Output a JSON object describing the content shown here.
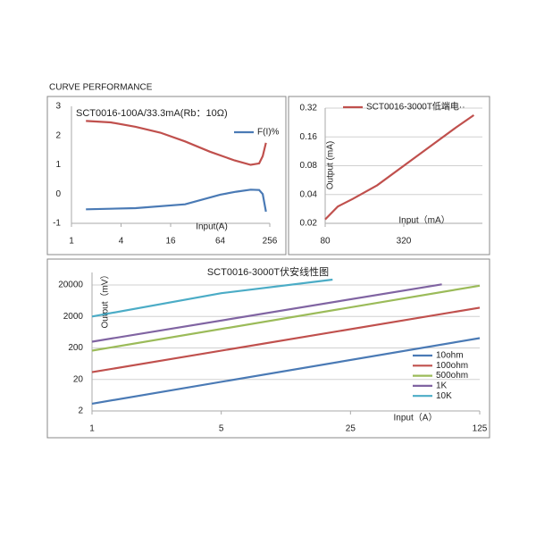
{
  "page_title": "CURVE PERFORMANCE",
  "chart_data": [
    {
      "type": "line",
      "title": "SCT0016-100A/33.3mA(Rb：10Ω)",
      "x_label": "Input(A)",
      "log_x": true,
      "legend": "upper right",
      "xlim": [
        1,
        256
      ],
      "xticks": [
        1,
        4,
        16,
        64,
        256
      ],
      "ylim": [
        -1,
        3
      ],
      "yticks": [
        3,
        2,
        1,
        0,
        -1
      ],
      "grid": false,
      "series": [
        {
          "color": "#c0504d",
          "x": [
            1.5,
            3,
            6,
            12,
            24,
            48,
            96,
            150,
            190,
            210,
            230
          ],
          "values": [
            2.5,
            2.45,
            2.3,
            2.1,
            1.8,
            1.45,
            1.15,
            1.0,
            1.05,
            1.3,
            1.75
          ]
        },
        {
          "name": "F(I)%",
          "color": "#4a7ab5",
          "x": [
            1.5,
            6,
            24,
            64,
            100,
            150,
            190,
            210,
            230
          ],
          "values": [
            -0.52,
            -0.48,
            -0.35,
            -0.02,
            0.08,
            0.15,
            0.14,
            0,
            -0.6
          ]
        }
      ]
    },
    {
      "type": "line",
      "x_label": "Input（mA）",
      "y_label": "Output (mA)",
      "log_x": true,
      "log_y": true,
      "legend": "top",
      "xlim": [
        80,
        1280
      ],
      "xticks": [
        80,
        320
      ],
      "ylim": [
        0.02,
        0.32
      ],
      "yticks": [
        0.32,
        0.16,
        0.08,
        0.04,
        0.02
      ],
      "grid": true,
      "series": [
        {
          "name": "SCT0016-3000T低端电··",
          "color": "#c0504d",
          "x": [
            80,
            100,
            130,
            200,
            400,
            800,
            1100
          ],
          "values": [
            0.022,
            0.03,
            0.036,
            0.05,
            0.1,
            0.2,
            0.27
          ]
        }
      ]
    },
    {
      "type": "line",
      "title": "SCT0016-3000T伏安线性图",
      "x_label": "Input（A）",
      "y_label": "Output（mV）",
      "log_x": true,
      "log_y": true,
      "legend": "lower right",
      "xlim": [
        1,
        125
      ],
      "xticks": [
        1,
        5,
        25,
        125
      ],
      "ylim": [
        2,
        50000
      ],
      "yticks": [
        20000,
        2000,
        200,
        20,
        2
      ],
      "grid": true,
      "series": [
        {
          "name": "10ohm",
          "color": "#4a7ab5",
          "x": [
            1,
            125
          ],
          "values": [
            3.4,
            410
          ]
        },
        {
          "name": "100ohm",
          "color": "#c0504d",
          "x": [
            1,
            125
          ],
          "values": [
            34,
            3800
          ]
        },
        {
          "name": "500ohm",
          "color": "#9bbb59",
          "x": [
            1,
            125
          ],
          "values": [
            164,
            19000
          ]
        },
        {
          "name": "1K",
          "color": "#8064a2",
          "x": [
            1,
            78
          ],
          "values": [
            317,
            21000
          ]
        },
        {
          "name": "10K",
          "color": "#4bacc6",
          "x": [
            1,
            5,
            20
          ],
          "values": [
            2000,
            11000,
            29600
          ]
        }
      ]
    }
  ]
}
